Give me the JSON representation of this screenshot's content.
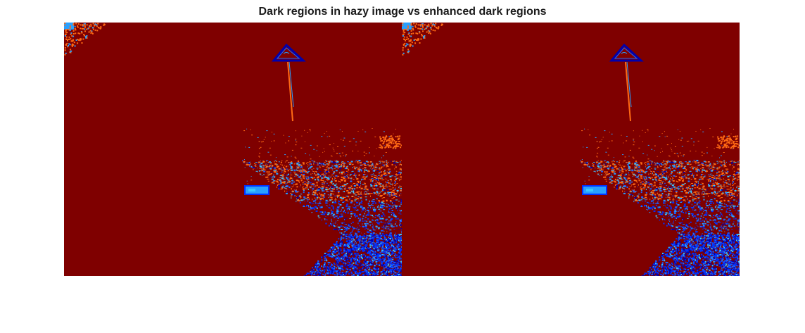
{
  "figure": {
    "title": "Dark regions in hazy image vs enhanced dark regions"
  },
  "palette": {
    "background_dark_red": "#7f0000",
    "dark_blue": "#0000ad",
    "blue": "#0032ff",
    "mid_blue": "#1e64ff",
    "light_blue": "#28a0ff",
    "cyan": "#3cc8ff",
    "orange": "#ff6a14",
    "light_orange": "#ff8c2a"
  },
  "panels": [
    {
      "id": "hazy-dark-regions"
    },
    {
      "id": "enhanced-dark-regions"
    }
  ]
}
